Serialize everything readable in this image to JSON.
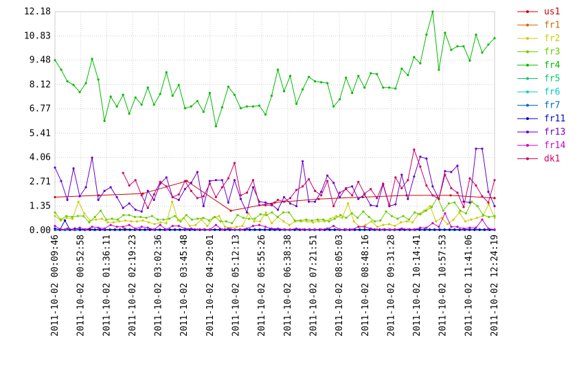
{
  "chart_data": {
    "type": "line",
    "ylim": [
      0,
      12.18
    ],
    "yticks": [
      "0.00",
      "1.35",
      "2.71",
      "4.06",
      "5.41",
      "6.77",
      "8.12",
      "9.48",
      "10.83",
      "12.18"
    ],
    "xtick_labels": [
      "2011-10-02 00:09:46",
      "2011-10-02 00:52:58",
      "2011-10-02 01:36:11",
      "2011-10-02 02:19:23",
      "2011-10-02 03:02:36",
      "2011-10-02 03:45:48",
      "2011-10-02 04:29:01",
      "2011-10-02 05:12:13",
      "2011-10-02 05:55:26",
      "2011-10-02 06:38:38",
      "2011-10-02 07:21:51",
      "2011-10-02 08:05:03",
      "2011-10-02 08:48:16",
      "2011-10-02 09:31:28",
      "2011-10-02 10:14:41",
      "2011-10-02 10:57:53",
      "2011-10-02 11:41:06",
      "2011-10-02 12:24:19"
    ],
    "grid": true,
    "legend_position": "right",
    "series": [
      {
        "name": "us1",
        "color": "#cc0000",
        "values": [
          1.85,
          1.95,
          2.05,
          2.75,
          1.1,
          1.55,
          1.75,
          1.85,
          1.95,
          1.95,
          1.8
        ]
      },
      {
        "name": "fr1",
        "color": "#cc6600",
        "values": [
          0.1,
          0.05,
          0.05,
          0.05,
          0.1,
          0.05,
          0.05,
          0.1,
          0.05,
          0.05,
          0.05,
          0.05,
          0.05,
          0.05,
          0.1,
          0.05,
          0.05,
          0.05,
          0.05,
          0.05,
          0.05,
          0.05,
          0.05,
          0.05,
          0.05,
          0.05,
          0.05,
          0.05,
          0.05,
          0.05,
          0.05,
          0.05,
          0.05,
          0.05,
          0.05,
          0.05,
          0.05,
          0.05,
          0.05,
          0.05,
          0.05,
          0.05,
          0.05,
          0.05,
          0.05,
          0.05,
          0.05,
          0.05,
          0.05,
          0.05,
          0.05,
          0.05,
          0.05,
          0.05,
          0.05,
          0.05,
          0.05,
          0.05,
          0.05,
          0.05,
          0.05,
          0.05,
          0.05,
          0.05,
          0.05,
          0.05,
          0.05,
          0.05,
          0.05,
          0.05,
          0.05,
          0.05,
          0.05,
          0.05,
          0.05,
          0.05,
          0.05,
          0.05,
          0.05,
          0.05,
          0.05,
          0.05,
          0.05,
          0.05,
          0.05,
          0.05,
          0.05,
          0.05,
          0.05
        ]
      },
      {
        "name": "fr2",
        "color": "#cccc00",
        "values": [
          0.8,
          0.55,
          0.7,
          0.65,
          1.6,
          0.95,
          0.55,
          0.6,
          0.65,
          0.45,
          0.45,
          0.5,
          0.55,
          0.5,
          0.5,
          0.55,
          0.45,
          0.35,
          0.45,
          0.4,
          1.6,
          0.55,
          0.7,
          0.25,
          0.3,
          0.6,
          0.25,
          0.7,
          0.8,
          0.2,
          0.15,
          0.2,
          0.25,
          0.95,
          0.5,
          0.5,
          1.0,
          0.4,
          0.75,
          0.5,
          0.3,
          0.5,
          0.5,
          0.5,
          0.45,
          0.5,
          0.5,
          0.65,
          0.8,
          0.7,
          1.5,
          0.5,
          0.2,
          0.3,
          0.5,
          0.2,
          0.3,
          0.35,
          0.25,
          0.45,
          0.5,
          0.45,
          0.9,
          1.1,
          1.35,
          0.5,
          0.7,
          0.35,
          0.6,
          1.0,
          0.5,
          0.6,
          0.7,
          0.8,
          1.45,
          0.7
        ]
      },
      {
        "name": "fr3",
        "color": "#66cc00",
        "values": [
          1.0,
          0.6,
          0.8,
          0.75,
          0.8,
          0.8,
          0.45,
          0.75,
          1.1,
          0.6,
          0.65,
          0.6,
          0.85,
          0.85,
          0.75,
          0.75,
          0.7,
          0.8,
          0.6,
          0.6,
          0.65,
          0.8,
          0.5,
          0.85,
          0.6,
          0.65,
          0.7,
          0.55,
          0.75,
          0.5,
          0.5,
          0.4,
          0.85,
          0.7,
          0.65,
          0.65,
          0.9,
          0.85,
          1.0,
          0.75,
          1.0,
          1.0,
          0.55,
          0.55,
          0.6,
          0.55,
          0.6,
          0.6,
          0.5,
          0.65,
          0.85,
          0.7,
          0.95,
          0.7,
          1.05,
          0.75,
          0.5,
          0.55,
          1.05,
          0.8,
          0.65,
          0.8,
          0.6,
          1.0,
          0.9,
          1.1,
          1.3,
          1.85,
          1.1,
          1.5,
          1.55,
          1.1,
          0.95,
          1.6,
          1.35,
          0.85,
          0.75,
          0.8
        ]
      },
      {
        "name": "fr4",
        "color": "#00bb00",
        "values": [
          9.48,
          8.95,
          8.3,
          8.1,
          7.7,
          8.2,
          9.55,
          8.4,
          6.1,
          7.45,
          6.9,
          7.55,
          6.5,
          7.4,
          7.0,
          7.95,
          7.0,
          7.6,
          8.8,
          7.5,
          8.1,
          6.8,
          6.9,
          7.2,
          6.6,
          7.65,
          5.8,
          6.85,
          8.0,
          7.55,
          6.8,
          6.9,
          6.9,
          6.95,
          6.45,
          7.5,
          8.95,
          7.75,
          8.6,
          7.05,
          7.85,
          8.55,
          8.3,
          8.25,
          8.2,
          6.9,
          7.3,
          8.5,
          7.65,
          8.6,
          7.95,
          8.75,
          8.7,
          7.95,
          7.95,
          7.9,
          9.0,
          8.65,
          9.65,
          9.3,
          10.9,
          12.18,
          8.95,
          11.0,
          10.05,
          10.25,
          10.25,
          9.45,
          10.9,
          9.9,
          10.35,
          10.7
        ]
      },
      {
        "name": "fr5",
        "color": "#00cc66",
        "values": []
      },
      {
        "name": "fr6",
        "color": "#00cccc",
        "values": []
      },
      {
        "name": "fr7",
        "color": "#0066cc",
        "values": [
          0.02,
          0.02,
          0.02,
          0.02,
          0.02,
          0.02,
          0.02,
          0.02,
          0.02,
          0.02,
          0.02,
          0.02,
          0.02,
          0.02,
          0.02,
          0.02,
          0.02,
          0.02,
          0.02,
          0.02,
          0.02,
          0.02,
          0.02,
          0.02,
          0.02,
          0.02,
          0.02,
          0.02,
          0.02,
          0.02,
          0.02,
          0.02,
          0.02,
          0.02,
          0.02,
          0.02,
          0.02,
          0.02,
          0.02,
          0.02,
          0.02,
          0.02,
          0.02,
          0.02,
          0.02,
          0.02,
          0.02,
          0.02,
          0.02,
          0.02,
          0.02,
          0.02,
          0.02,
          0.02,
          0.02,
          0.02,
          0.02,
          0.02,
          0.02,
          0.02,
          0.02,
          0.02,
          0.02,
          0.02,
          0.02,
          0.02,
          0.02,
          0.02,
          0.02,
          0.02,
          0.02,
          0.02,
          0.02,
          0.02,
          0.02,
          0.02,
          0.02,
          0.02,
          0.02,
          0.02,
          0.02,
          0.02,
          0.02,
          0.02,
          0.02,
          0.02,
          0.02,
          0.02,
          0.02
        ]
      },
      {
        "name": "fr11",
        "color": "#0000cc",
        "values": [
          0.1,
          0.05,
          0.55,
          0.05,
          0.1,
          0.05,
          0.05,
          0.05,
          0.05,
          0.05,
          0.05,
          0.05,
          0.05,
          0.05,
          0.05,
          0.05,
          0.05,
          0.05,
          0.05,
          0.05,
          0.05,
          0.05,
          0.05,
          0.05,
          0.05,
          0.05,
          0.05,
          0.05,
          0.05,
          0.05,
          0.05,
          0.05,
          0.05,
          0.05,
          0.05,
          0.05,
          0.05,
          0.05,
          0.05,
          0.05,
          0.05,
          0.05,
          0.05,
          0.05,
          0.05,
          0.05,
          0.05,
          0.05,
          0.05,
          0.05,
          0.05,
          0.05,
          0.05,
          0.05,
          0.05,
          0.05,
          0.05,
          0.05,
          0.05,
          0.05,
          0.05,
          0.05,
          0.05,
          0.05,
          0.05,
          0.05,
          0.05,
          0.05,
          0.05,
          0.05,
          0.05,
          0.05,
          0.05,
          0.05,
          0.05,
          0.05,
          0.05,
          0.05,
          0.05,
          0.05,
          0.05,
          0.05,
          0.05,
          0.05,
          0.05,
          0.05,
          0.05,
          0.05,
          0.05
        ]
      },
      {
        "name": "fr13",
        "color": "#6600cc",
        "values": [
          3.5,
          2.75,
          1.7,
          3.45,
          1.9,
          2.4,
          4.05,
          1.7,
          2.2,
          2.4,
          1.85,
          1.25,
          1.5,
          1.15,
          1.05,
          2.2,
          1.7,
          2.6,
          2.95,
          1.85,
          1.7,
          2.3,
          2.65,
          3.25,
          1.35,
          2.75,
          2.8,
          2.8,
          1.55,
          2.8,
          1.75,
          1.0,
          2.4,
          1.6,
          1.55,
          1.45,
          1.15,
          1.85,
          1.5,
          1.35,
          3.85,
          1.6,
          1.6,
          2.15,
          3.05,
          2.65,
          1.85,
          2.35,
          2.45,
          1.75,
          2.0,
          1.4,
          1.35,
          2.55,
          1.35,
          1.45,
          3.1,
          1.75,
          3.0,
          4.1,
          4.0,
          2.45,
          1.75,
          3.3,
          3.25,
          3.6,
          1.6,
          1.55,
          4.55,
          4.55,
          2.15,
          1.35
        ]
      },
      {
        "name": "fr14",
        "color": "#cc00cc",
        "values": [
          0.25,
          0.05,
          0.1,
          0.05,
          0.15,
          0.05,
          0.2,
          0.15,
          0.1,
          0.3,
          0.2,
          0.2,
          0.3,
          0.1,
          0.2,
          0.15,
          0.05,
          0.3,
          0.05,
          0.25,
          0.25,
          0.1,
          0.1,
          0.05,
          0.05,
          0.05,
          0.3,
          0.05,
          0.1,
          0.05,
          0.05,
          0.1,
          0.25,
          0.3,
          0.2,
          0.1,
          0.1,
          0.05,
          0.05,
          0.1,
          0.05,
          0.05,
          0.05,
          0.05,
          0.1,
          0.25,
          0.05,
          0.05,
          0.05,
          0.2,
          0.2,
          0.1,
          0.05,
          0.05,
          0.05,
          0.05,
          0.1,
          0.05,
          0.05,
          0.15,
          0.15,
          0.4,
          0.2,
          0.95,
          0.2,
          0.2,
          0.1,
          0.15,
          0.15,
          0.6,
          0.1,
          0.05
        ]
      },
      {
        "name": "dk1",
        "color": "#cc0066",
        "values": [
          null,
          null,
          null,
          null,
          null,
          null,
          null,
          null,
          null,
          null,
          null,
          3.2,
          2.5,
          2.8,
          1.95,
          1.25,
          2.0,
          2.7,
          2.45,
          1.85,
          2.0,
          2.75,
          2.2,
          1.8,
          1.9,
          2.6,
          1.85,
          2.4,
          2.9,
          3.75,
          1.95,
          2.1,
          2.8,
          1.4,
          1.4,
          1.4,
          1.7,
          1.6,
          1.8,
          2.25,
          2.45,
          2.85,
          2.2,
          1.95,
          2.75,
          1.35,
          2.1,
          2.3,
          1.95,
          2.7,
          2.05,
          2.3,
          1.8,
          2.6,
          1.4,
          2.95,
          2.35,
          2.8,
          4.5,
          3.55,
          2.5,
          1.95,
          1.75,
          3.1,
          2.35,
          2.1,
          1.3,
          2.9,
          2.5,
          1.9,
          1.55,
          2.8
        ]
      }
    ]
  }
}
